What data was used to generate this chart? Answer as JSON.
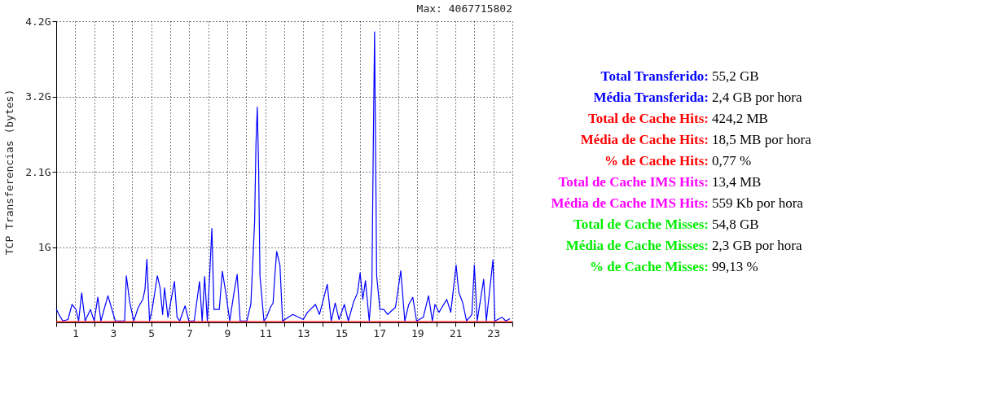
{
  "chart_data": [
    {
      "type": "line",
      "ylabel": "TCP Transferencias (bytes)",
      "annotations": [
        "Max: 4067715802"
      ],
      "xlim": [
        0,
        24
      ],
      "xticks": [
        {
          "value": 0,
          "label": null
        },
        1,
        {
          "value": 2,
          "label": null
        },
        3,
        {
          "value": 4,
          "label": null
        },
        5,
        {
          "value": 6,
          "label": null
        },
        7,
        {
          "value": 8,
          "label": null
        },
        9,
        {
          "value": 10,
          "label": null
        },
        11,
        {
          "value": 12,
          "label": null
        },
        13,
        {
          "value": 14,
          "label": null
        },
        15,
        {
          "value": 16,
          "label": null
        },
        17,
        {
          "value": 18,
          "label": null
        },
        19,
        {
          "value": 20,
          "label": null
        },
        21,
        {
          "value": 22,
          "label": null
        },
        23,
        {
          "value": 24,
          "label": null
        }
      ],
      "ylim": [
        0,
        4.2
      ],
      "yticks": [
        {
          "value": 1.05,
          "label": "1G"
        },
        {
          "value": 2.1,
          "label": "2.1G"
        },
        {
          "value": 3.15,
          "label": "3.2G"
        },
        {
          "value": 4.2,
          "label": "4.2G"
        }
      ],
      "grid": true,
      "line_style": "solid",
      "marker": "none",
      "series": [
        {
          "color": "#0000ff",
          "x": [
            0.0,
            0.14,
            0.35,
            0.62,
            0.83,
            1.04,
            1.18,
            1.34,
            1.52,
            1.8,
            2.0,
            2.19,
            2.35,
            2.72,
            2.9,
            3.11,
            3.32,
            3.6,
            3.69,
            3.87,
            4.08,
            4.32,
            4.56,
            4.67,
            4.77,
            4.91,
            5.05,
            5.32,
            5.46,
            5.6,
            5.7,
            5.88,
            6.22,
            6.36,
            6.5,
            6.78,
            6.98,
            7.26,
            7.54,
            7.68,
            7.81,
            7.95,
            8.09,
            8.19,
            8.3,
            8.58,
            8.74,
            8.92,
            9.13,
            9.34,
            9.52,
            9.68,
            10.03,
            10.24,
            10.44,
            10.51,
            10.58,
            10.65,
            10.72,
            10.93,
            11.07,
            11.27,
            11.41,
            11.49,
            11.6,
            11.77,
            11.91,
            12.45,
            13.0,
            13.22,
            13.64,
            13.85,
            14.26,
            14.47,
            14.68,
            14.88,
            15.16,
            15.37,
            15.64,
            15.85,
            15.99,
            16.13,
            16.27,
            16.47,
            16.61,
            16.68,
            16.75,
            16.86,
            17.03,
            17.24,
            17.44,
            17.85,
            18.13,
            18.34,
            18.55,
            18.76,
            18.96,
            19.31,
            19.59,
            19.79,
            19.93,
            20.14,
            20.55,
            20.76,
            21.04,
            21.18,
            21.38,
            21.59,
            21.87,
            22.0,
            22.15,
            22.49,
            22.63,
            22.98,
            23.08,
            23.46,
            23.66,
            23.87
          ],
          "values": [
            0.19,
            0.11,
            0.02,
            0.04,
            0.25,
            0.18,
            0.02,
            0.41,
            0.02,
            0.18,
            0.02,
            0.35,
            0.02,
            0.37,
            0.21,
            0.02,
            0.02,
            0.02,
            0.65,
            0.28,
            0.02,
            0.21,
            0.32,
            0.46,
            0.88,
            0.02,
            0.18,
            0.65,
            0.49,
            0.11,
            0.48,
            0.07,
            0.57,
            0.07,
            0.02,
            0.23,
            0.02,
            0.02,
            0.57,
            0.02,
            0.64,
            0.02,
            0.74,
            1.31,
            0.18,
            0.18,
            0.71,
            0.42,
            0.02,
            0.39,
            0.67,
            0.02,
            0.02,
            0.25,
            1.41,
            2.49,
            3.0,
            2.16,
            0.65,
            0.02,
            0.07,
            0.21,
            0.27,
            0.6,
            0.99,
            0.8,
            0.02,
            0.11,
            0.04,
            0.14,
            0.25,
            0.11,
            0.53,
            0.02,
            0.27,
            0.04,
            0.25,
            0.02,
            0.28,
            0.41,
            0.69,
            0.32,
            0.58,
            0.02,
            0.53,
            2.39,
            4.05,
            0.65,
            0.18,
            0.18,
            0.11,
            0.21,
            0.72,
            0.02,
            0.25,
            0.35,
            0.02,
            0.07,
            0.37,
            0.02,
            0.25,
            0.14,
            0.32,
            0.14,
            0.8,
            0.42,
            0.28,
            0.02,
            0.11,
            0.8,
            0.02,
            0.6,
            0.02,
            0.87,
            0.02,
            0.07,
            0.02,
            0.05
          ]
        },
        {
          "color": "#ff0000",
          "x": [
            0,
            24
          ],
          "values": [
            0.01,
            0.01
          ]
        }
      ]
    },
    {
      "type": "other",
      "annotations": [
        "Total Transferido: 55,2 GB",
        "Média Transferida: 2,4 GB por hora",
        "Total de Cache Hits: 424,2 MB",
        "Média de Cache Hits: 18,5 MB por hora",
        "% de Cache Hits: 0,77 %",
        "Total de Cache IMS Hits: 13,4 MB",
        "Média de Cache IMS Hits: 559 Kb por hora",
        "Total de Cache Misses: 54,8 GB",
        "Média de Cache Misses: 2,3 GB por hora",
        "% de Cache Misses: 99,13 %"
      ],
      "colors": [
        "#0000ff",
        "#0000ff",
        "#ff0000",
        "#ff0000",
        "#ff0000",
        "#ff00ff",
        "#ff00ff",
        "#00ee00",
        "#00ee00",
        "#00ee00"
      ]
    }
  ]
}
